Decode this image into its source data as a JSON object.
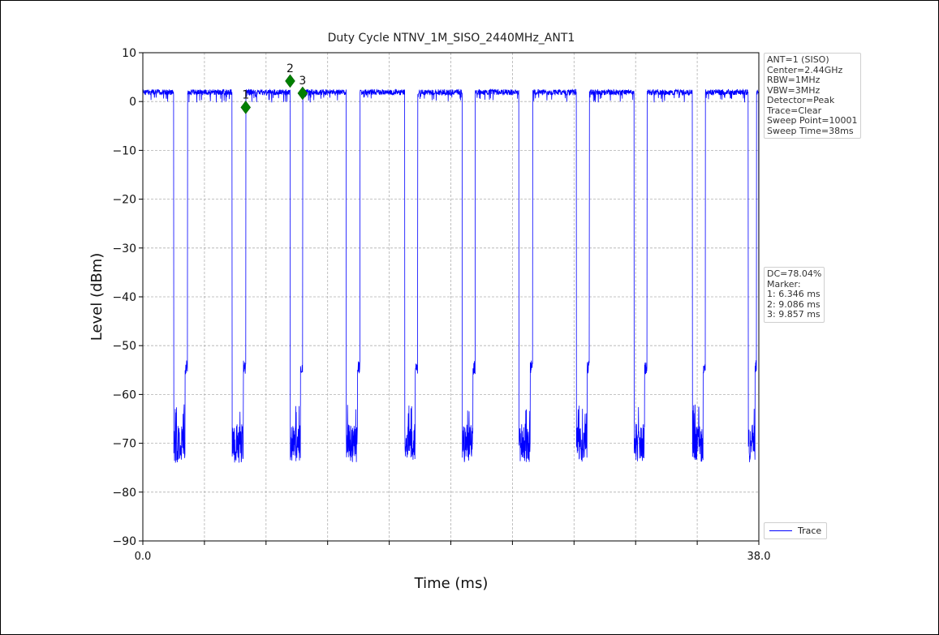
{
  "chart_data": {
    "type": "line",
    "title": "Duty Cycle NTNV_1M_SISO_2440MHz_ANT1",
    "xlabel": "Time (ms)",
    "ylabel": "Level (dBm)",
    "xlim": [
      0,
      38
    ],
    "ylim": [
      -90,
      10
    ],
    "x_tick_labels": [
      {
        "value": 0,
        "label": "0.0"
      },
      {
        "value": 38,
        "label": "38.0"
      }
    ],
    "x_minor_ticks": [
      3.8,
      7.6,
      11.4,
      15.2,
      19.0,
      22.8,
      26.6,
      30.4,
      34.2
    ],
    "y_ticks": [
      10,
      0,
      -10,
      -20,
      -30,
      -40,
      -50,
      -60,
      -70,
      -80,
      -90
    ],
    "grid": true,
    "legend_position": "bottom-right",
    "series": [
      {
        "name": "Trace",
        "color": "#0000ff",
        "on_level": 2.5,
        "off_level": -67,
        "on_intervals": [
          [
            0,
            1.9
          ],
          [
            2.75,
            5.5
          ],
          [
            6.35,
            9.09
          ],
          [
            9.86,
            12.55
          ],
          [
            13.4,
            16.15
          ],
          [
            16.95,
            19.7
          ],
          [
            20.5,
            23.2
          ],
          [
            24.05,
            26.75
          ],
          [
            27.55,
            30.3
          ],
          [
            31.1,
            33.9
          ],
          [
            34.7,
            37.35
          ],
          [
            37.85,
            38
          ]
        ]
      }
    ],
    "markers": [
      {
        "label": "1",
        "x": 6.346,
        "y": -1.2
      },
      {
        "label": "2",
        "x": 9.086,
        "y": 4.2
      },
      {
        "label": "3",
        "x": 9.857,
        "y": 1.7
      }
    ],
    "marker_color": "#008000"
  },
  "settings_box": {
    "lines": [
      "ANT=1 (SISO)",
      "Center=2.44GHz",
      "RBW=1MHz",
      "VBW=3MHz",
      "Detector=Peak",
      "Trace=Clear",
      "Sweep Point=10001",
      "Sweep Time=38ms"
    ]
  },
  "result_box": {
    "lines": [
      "DC=78.04%",
      "Marker:",
      "1: 6.346 ms",
      "2: 9.086 ms",
      "3: 9.857 ms"
    ]
  },
  "legend": {
    "label": "Trace"
  }
}
